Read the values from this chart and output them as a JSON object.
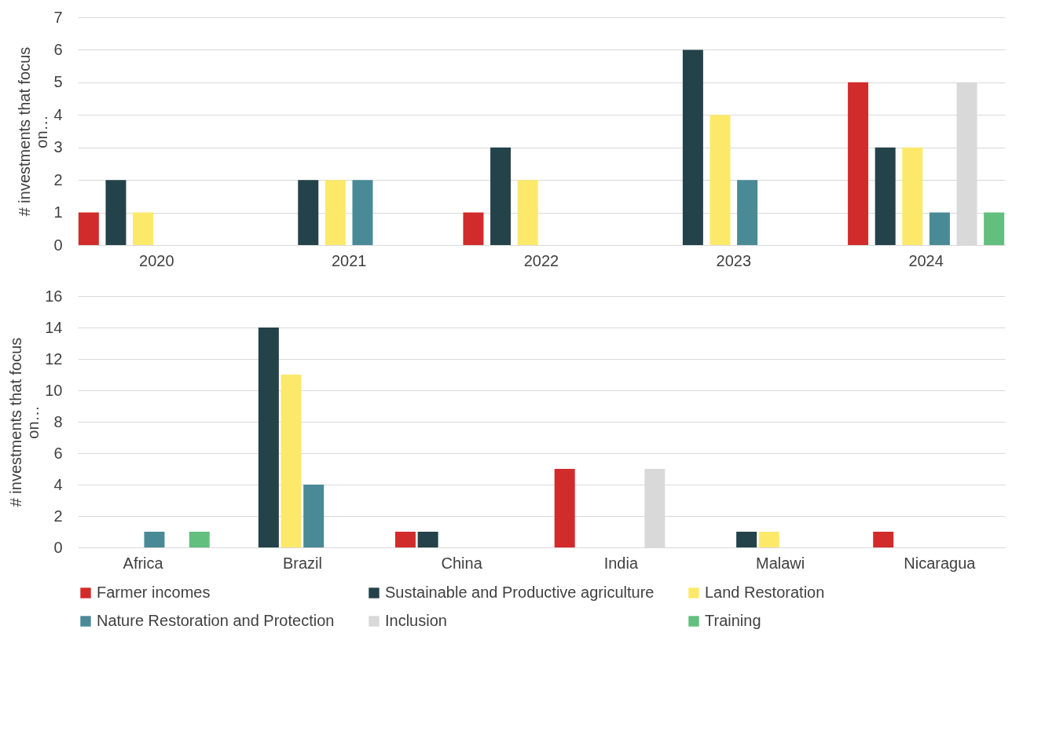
{
  "chart_data": [
    {
      "type": "bar",
      "ylabel": "# investments that focus on…",
      "categories": [
        "2020",
        "2021",
        "2022",
        "2023",
        "2024"
      ],
      "ylim": [
        0,
        7
      ],
      "yticks": [
        0,
        1,
        2,
        3,
        4,
        5,
        6,
        7
      ],
      "grid": "y",
      "legend": false,
      "series": [
        {
          "color": "#d22b2b",
          "values": [
            1,
            null,
            1,
            null,
            5
          ]
        },
        {
          "color": "#24424a",
          "values": [
            2,
            2,
            3,
            6,
            3
          ]
        },
        {
          "color": "#fce96a",
          "values": [
            1,
            2,
            2,
            4,
            3
          ]
        },
        {
          "color": "#4a8a96",
          "values": [
            null,
            2,
            null,
            2,
            1
          ]
        },
        {
          "color": "#d9d9d9",
          "values": [
            null,
            null,
            null,
            null,
            5
          ]
        },
        {
          "color": "#63bf7e",
          "values": [
            null,
            null,
            null,
            null,
            1
          ]
        }
      ]
    },
    {
      "type": "bar",
      "ylabel": "# investments that focus on…",
      "categories": [
        "Africa",
        "Brazil",
        "China",
        "India",
        "Malawi",
        "Nicaragua"
      ],
      "ylim": [
        0,
        16
      ],
      "yticks": [
        0,
        2,
        4,
        6,
        8,
        10,
        12,
        14,
        16
      ],
      "grid": "y",
      "legend": "bottom",
      "series": [
        {
          "name": "Farmer incomes",
          "color": "#d22b2b",
          "values": [
            null,
            null,
            1,
            5,
            null,
            1
          ]
        },
        {
          "name": "Sustainable and Productive agriculture",
          "color": "#24424a",
          "values": [
            null,
            14,
            1,
            null,
            1,
            null
          ]
        },
        {
          "name": "Land Restoration",
          "color": "#fce96a",
          "values": [
            null,
            11,
            null,
            null,
            1,
            null
          ]
        },
        {
          "name": "Nature Restoration and Protection",
          "color": "#4a8a96",
          "values": [
            1,
            4,
            null,
            null,
            null,
            null
          ]
        },
        {
          "name": "Inclusion",
          "color": "#d9d9d9",
          "values": [
            null,
            null,
            null,
            5,
            null,
            null
          ]
        },
        {
          "name": "Training",
          "color": "#63bf7e",
          "values": [
            1,
            null,
            null,
            null,
            null,
            null
          ]
        }
      ]
    }
  ]
}
